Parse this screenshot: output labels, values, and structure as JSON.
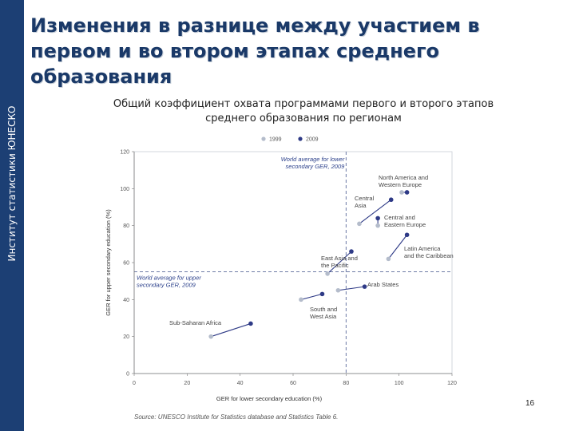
{
  "slide": {
    "title": "Изменения в разнице между участием в первом и во втором этапах среднего образования",
    "side_label": "Институт статистики ЮНЕСКО",
    "chart_heading_line1": "Общий коэффициент охвата программами первого и второго этапов",
    "chart_heading_line2": "среднего образования по регионам",
    "slide_number": "16",
    "source": "Source: UNESCO Institute for Statistics database and Statistics Table 6."
  },
  "chart_data": {
    "type": "scatter",
    "xlabel": "GER for lower secondary education (%)",
    "ylabel": "GER for upper secondary education (%)",
    "xlim": [
      0,
      120
    ],
    "ylim": [
      0,
      120
    ],
    "xticks": [
      0,
      20,
      40,
      60,
      80,
      100,
      120
    ],
    "yticks": [
      0,
      20,
      40,
      60,
      80,
      100,
      120
    ],
    "series": [
      {
        "name": "1999",
        "color": "#b4bccb"
      },
      {
        "name": "2009",
        "color": "#2e3a86"
      }
    ],
    "legend_position": "top",
    "reference_lines": [
      {
        "axis": "x",
        "value": 80,
        "label_line1": "World average for lower",
        "label_line2": "secondary GER, 2009"
      },
      {
        "axis": "y",
        "value": 55,
        "label_line1": "World average for upper",
        "label_line2": "secondary GER, 2009"
      }
    ],
    "regions": [
      {
        "label_line1": "North America and",
        "label_line2": "Western Europe",
        "x1999": 101,
        "y1999": 98,
        "x2009": 103,
        "y2009": 98
      },
      {
        "label_line1": "Central",
        "label_line2": "Asia",
        "x1999": 85,
        "y1999": 81,
        "x2009": 97,
        "y2009": 94
      },
      {
        "label_line1": "Central and",
        "label_line2": "Eastern Europe",
        "x1999": 92,
        "y1999": 80,
        "x2009": 92,
        "y2009": 84
      },
      {
        "label_line1": "Latin America",
        "label_line2": "and the Caribbean",
        "x1999": 96,
        "y1999": 62,
        "x2009": 103,
        "y2009": 75
      },
      {
        "label_line1": "East Asia and",
        "label_line2": "the Pacific",
        "x1999": 73,
        "y1999": 54,
        "x2009": 82,
        "y2009": 66
      },
      {
        "label_line1": "Arab States",
        "label_line2": "",
        "x1999": 77,
        "y1999": 45,
        "x2009": 87,
        "y2009": 47
      },
      {
        "label_line1": "South and",
        "label_line2": "West Asia",
        "x1999": 63,
        "y1999": 40,
        "x2009": 71,
        "y2009": 43
      },
      {
        "label_line1": "Sub-Saharan Africa",
        "label_line2": "",
        "x1999": 29,
        "y1999": 20,
        "x2009": 44,
        "y2009": 27
      }
    ]
  }
}
